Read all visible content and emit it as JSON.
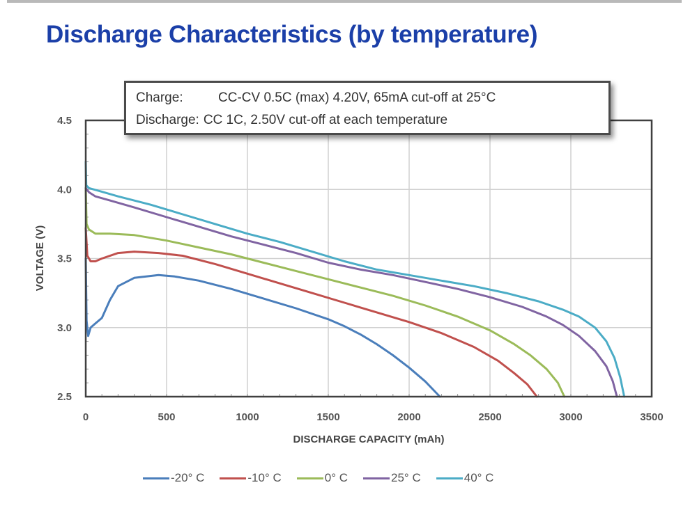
{
  "slide": {
    "title": "Discharge Characteristics (by temperature)",
    "title_color": "#1b3fa8"
  },
  "note": {
    "rows": [
      {
        "label": "Charge:",
        "text": "CC-CV 0.5C (max) 4.20V, 65mA cut-off at 25°C"
      },
      {
        "label": "Discharge:",
        "text": "CC 1C, 2.50V cut-off at each temperature"
      }
    ]
  },
  "chart_data": {
    "type": "line",
    "title": "Discharge Characteristics (by temperature)",
    "xlabel": "DISCHARGE CAPACITY (mAh)",
    "ylabel": "VOLTAGE (V)",
    "xlim": [
      0,
      3500
    ],
    "ylim": [
      2.5,
      4.5
    ],
    "x_ticks": [
      0,
      500,
      1000,
      1500,
      2000,
      2500,
      3000,
      3500
    ],
    "x_tick_labels": [
      "0",
      "500",
      "1000",
      "1500",
      "2000",
      "2500",
      "3000",
      "3500"
    ],
    "y_ticks": [
      2.5,
      3.0,
      3.5,
      4.0,
      4.5
    ],
    "y_tick_labels": [
      "2.5",
      "3.0",
      "3.5",
      "4.0",
      "4.5"
    ],
    "grid": true,
    "legend_position": "bottom",
    "series": [
      {
        "name": "-20° C",
        "color": "#4a7ebb",
        "points": [
          [
            0,
            3.5
          ],
          [
            5,
            3.05
          ],
          [
            15,
            2.94
          ],
          [
            30,
            3.0
          ],
          [
            60,
            3.03
          ],
          [
            100,
            3.07
          ],
          [
            150,
            3.2
          ],
          [
            200,
            3.3
          ],
          [
            300,
            3.36
          ],
          [
            450,
            3.38
          ],
          [
            550,
            3.37
          ],
          [
            700,
            3.34
          ],
          [
            900,
            3.28
          ],
          [
            1100,
            3.21
          ],
          [
            1300,
            3.14
          ],
          [
            1500,
            3.06
          ],
          [
            1600,
            3.01
          ],
          [
            1700,
            2.95
          ],
          [
            1800,
            2.88
          ],
          [
            1900,
            2.8
          ],
          [
            2000,
            2.71
          ],
          [
            2100,
            2.61
          ],
          [
            2190,
            2.5
          ]
        ]
      },
      {
        "name": "-10° C",
        "color": "#c0504d",
        "points": [
          [
            0,
            3.72
          ],
          [
            10,
            3.52
          ],
          [
            30,
            3.48
          ],
          [
            60,
            3.48
          ],
          [
            100,
            3.5
          ],
          [
            200,
            3.54
          ],
          [
            300,
            3.55
          ],
          [
            450,
            3.54
          ],
          [
            600,
            3.52
          ],
          [
            800,
            3.46
          ],
          [
            1000,
            3.39
          ],
          [
            1200,
            3.32
          ],
          [
            1400,
            3.25
          ],
          [
            1600,
            3.18
          ],
          [
            1800,
            3.11
          ],
          [
            2000,
            3.04
          ],
          [
            2200,
            2.96
          ],
          [
            2400,
            2.86
          ],
          [
            2550,
            2.76
          ],
          [
            2650,
            2.67
          ],
          [
            2730,
            2.59
          ],
          [
            2790,
            2.5
          ]
        ]
      },
      {
        "name": "0° C",
        "color": "#9bbb59",
        "points": [
          [
            0,
            4.01
          ],
          [
            5,
            3.75
          ],
          [
            20,
            3.71
          ],
          [
            60,
            3.68
          ],
          [
            150,
            3.68
          ],
          [
            300,
            3.67
          ],
          [
            500,
            3.63
          ],
          [
            700,
            3.58
          ],
          [
            900,
            3.53
          ],
          [
            1100,
            3.47
          ],
          [
            1300,
            3.41
          ],
          [
            1500,
            3.35
          ],
          [
            1700,
            3.29
          ],
          [
            1900,
            3.23
          ],
          [
            2100,
            3.16
          ],
          [
            2300,
            3.08
          ],
          [
            2500,
            2.98
          ],
          [
            2650,
            2.88
          ],
          [
            2750,
            2.8
          ],
          [
            2850,
            2.7
          ],
          [
            2920,
            2.6
          ],
          [
            2960,
            2.5
          ]
        ]
      },
      {
        "name": "25° C",
        "color": "#8064a2",
        "points": [
          [
            0,
            4.01
          ],
          [
            20,
            3.98
          ],
          [
            60,
            3.95
          ],
          [
            150,
            3.92
          ],
          [
            300,
            3.87
          ],
          [
            500,
            3.8
          ],
          [
            700,
            3.73
          ],
          [
            900,
            3.66
          ],
          [
            1100,
            3.6
          ],
          [
            1300,
            3.54
          ],
          [
            1500,
            3.47
          ],
          [
            1700,
            3.42
          ],
          [
            1900,
            3.38
          ],
          [
            2100,
            3.33
          ],
          [
            2300,
            3.28
          ],
          [
            2500,
            3.22
          ],
          [
            2700,
            3.15
          ],
          [
            2850,
            3.08
          ],
          [
            2950,
            3.02
          ],
          [
            3050,
            2.94
          ],
          [
            3150,
            2.83
          ],
          [
            3220,
            2.72
          ],
          [
            3260,
            2.61
          ],
          [
            3285,
            2.5
          ]
        ]
      },
      {
        "name": "40° C",
        "color": "#4bacc6",
        "points": [
          [
            0,
            4.2
          ],
          [
            3,
            4.03
          ],
          [
            20,
            4.01
          ],
          [
            80,
            3.99
          ],
          [
            200,
            3.95
          ],
          [
            400,
            3.89
          ],
          [
            600,
            3.82
          ],
          [
            800,
            3.75
          ],
          [
            1000,
            3.68
          ],
          [
            1200,
            3.62
          ],
          [
            1400,
            3.55
          ],
          [
            1600,
            3.48
          ],
          [
            1800,
            3.42
          ],
          [
            2000,
            3.38
          ],
          [
            2200,
            3.34
          ],
          [
            2400,
            3.3
          ],
          [
            2600,
            3.25
          ],
          [
            2800,
            3.19
          ],
          [
            2950,
            3.13
          ],
          [
            3050,
            3.08
          ],
          [
            3150,
            3.0
          ],
          [
            3220,
            2.9
          ],
          [
            3270,
            2.78
          ],
          [
            3305,
            2.64
          ],
          [
            3330,
            2.5
          ]
        ]
      }
    ]
  }
}
